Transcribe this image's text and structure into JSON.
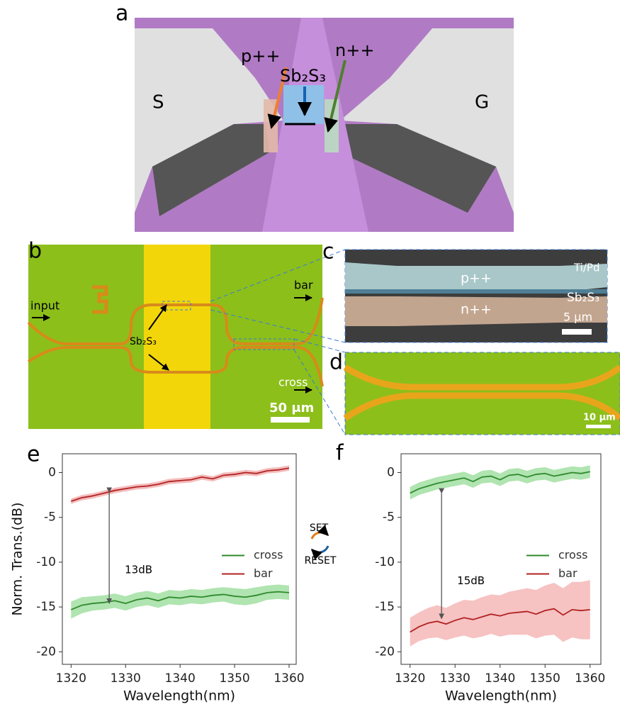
{
  "panels": {
    "a": {
      "label": "a",
      "left_electrode": "S",
      "right_electrode": "G",
      "p_label": "p++",
      "n_label": "n++",
      "material": "Sb₂S₃"
    },
    "b": {
      "label": "b",
      "input": "input",
      "bar": "bar",
      "cross": "cross",
      "material": "Sb₂S₃",
      "scale": "50 μm"
    },
    "c": {
      "label": "c",
      "p_label": "p++",
      "n_label": "n++",
      "metal": "Ti/Pd",
      "material": "Sb₂S₃",
      "scale": "5 μm"
    },
    "d": {
      "label": "d",
      "scale": "10 μm"
    },
    "e": {
      "label": "e"
    },
    "f": {
      "label": "f"
    }
  },
  "state_switch": {
    "set": "SET",
    "reset": "RESET"
  },
  "chart_data": [
    {
      "type": "line",
      "ylabel": "Norm. Trans.(dB)",
      "xlabel": "Wavelength(nm)",
      "x": [
        1320,
        1322,
        1324,
        1326,
        1328,
        1330,
        1332,
        1334,
        1336,
        1338,
        1340,
        1342,
        1344,
        1346,
        1348,
        1350,
        1352,
        1354,
        1356,
        1358,
        1360
      ],
      "xlim": [
        1318.4,
        1361.3
      ],
      "ylim": [
        -21.4,
        2.1
      ],
      "xticks": [
        1320,
        1330,
        1340,
        1350,
        1360
      ],
      "yticks": [
        -20,
        -15,
        -10,
        -5,
        0
      ],
      "legend": "center right",
      "series": [
        {
          "name": "cross",
          "color": "#2e8b2e",
          "band_color": "#8fd98f",
          "values": [
            -15.3,
            -14.8,
            -14.6,
            -14.5,
            -14.3,
            -14.6,
            -14.2,
            -14.0,
            -14.3,
            -13.9,
            -14.0,
            -13.8,
            -13.9,
            -13.7,
            -13.6,
            -13.8,
            -13.9,
            -13.7,
            -13.4,
            -13.3,
            -13.4
          ],
          "lower": [
            -16.3,
            -15.7,
            -15.4,
            -15.3,
            -15.1,
            -15.4,
            -15.0,
            -14.8,
            -15.1,
            -14.7,
            -14.8,
            -14.6,
            -14.7,
            -14.5,
            -14.4,
            -14.7,
            -14.8,
            -14.6,
            -14.2,
            -14.1,
            -14.2
          ],
          "upper": [
            -14.4,
            -13.9,
            -13.8,
            -13.7,
            -13.5,
            -13.8,
            -13.4,
            -13.2,
            -13.5,
            -13.1,
            -13.2,
            -13.0,
            -13.1,
            -12.9,
            -12.8,
            -12.9,
            -13.0,
            -12.8,
            -12.6,
            -12.5,
            -12.6
          ]
        },
        {
          "name": "bar",
          "color": "#b22222",
          "band_color": "#f0a0a0",
          "values": [
            -3.2,
            -2.8,
            -2.6,
            -2.3,
            -2.0,
            -1.8,
            -1.6,
            -1.5,
            -1.3,
            -1.0,
            -0.9,
            -0.8,
            -0.5,
            -0.7,
            -0.3,
            -0.2,
            0.0,
            -0.1,
            0.2,
            0.3,
            0.5
          ],
          "lower": [
            -3.5,
            -3.1,
            -2.9,
            -2.6,
            -2.3,
            -2.1,
            -1.9,
            -1.8,
            -1.6,
            -1.3,
            -1.2,
            -1.1,
            -0.8,
            -1.0,
            -0.6,
            -0.5,
            -0.3,
            -0.4,
            -0.1,
            0.0,
            0.2
          ],
          "upper": [
            -2.9,
            -2.5,
            -2.3,
            -2.0,
            -1.7,
            -1.5,
            -1.3,
            -1.2,
            -1.0,
            -0.7,
            -0.6,
            -0.5,
            -0.2,
            -0.4,
            0.0,
            0.1,
            0.3,
            0.2,
            0.5,
            0.6,
            0.8
          ]
        }
      ],
      "arrow": {
        "label": "13dB",
        "x": 1327,
        "from": -2.2,
        "to": -14.6
      }
    },
    {
      "type": "line",
      "xlabel": "Wavelength(nm)",
      "x": [
        1320,
        1322,
        1324,
        1326,
        1328,
        1330,
        1332,
        1334,
        1336,
        1338,
        1340,
        1342,
        1344,
        1346,
        1348,
        1350,
        1352,
        1354,
        1356,
        1358,
        1360
      ],
      "xlim": [
        1318,
        1362.4
      ],
      "ylim": [
        -21.4,
        2.1
      ],
      "xticks": [
        1320,
        1330,
        1340,
        1350,
        1360
      ],
      "yticks": [
        -20,
        -15,
        -10,
        -5,
        0
      ],
      "legend": "center right",
      "series": [
        {
          "name": "cross",
          "color": "#2e8b2e",
          "band_color": "#8fd98f",
          "values": [
            -2.3,
            -1.8,
            -1.5,
            -1.2,
            -1.0,
            -0.8,
            -0.6,
            -1.0,
            -0.5,
            -0.4,
            -0.8,
            -0.3,
            -0.2,
            -0.5,
            -0.2,
            -0.1,
            -0.4,
            -0.2,
            0.0,
            -0.1,
            0.1
          ],
          "lower": [
            -3.0,
            -2.5,
            -2.2,
            -1.9,
            -1.7,
            -1.5,
            -1.3,
            -1.7,
            -1.2,
            -1.1,
            -1.5,
            -1.0,
            -0.9,
            -1.2,
            -0.9,
            -0.8,
            -1.1,
            -0.9,
            -0.7,
            -0.8,
            -0.6
          ],
          "upper": [
            -1.6,
            -1.1,
            -0.8,
            -0.5,
            -0.3,
            -0.1,
            0.1,
            -0.3,
            0.2,
            0.3,
            -0.1,
            0.4,
            0.5,
            0.2,
            0.5,
            0.6,
            0.3,
            0.5,
            0.7,
            0.6,
            0.8
          ]
        },
        {
          "name": "bar",
          "color": "#b22222",
          "band_color": "#f2a8a8",
          "values": [
            -17.8,
            -17.2,
            -16.8,
            -16.6,
            -16.9,
            -16.5,
            -16.2,
            -16.4,
            -16.1,
            -15.8,
            -16.0,
            -15.7,
            -15.6,
            -15.5,
            -15.8,
            -15.4,
            -15.2,
            -15.9,
            -15.3,
            -15.4,
            -15.3
          ],
          "lower": [
            -19.4,
            -18.8,
            -18.5,
            -18.4,
            -18.7,
            -18.4,
            -18.2,
            -18.5,
            -18.3,
            -18.0,
            -18.3,
            -18.1,
            -18.1,
            -18.1,
            -18.5,
            -18.2,
            -18.1,
            -18.9,
            -18.4,
            -18.6,
            -18.6
          ],
          "upper": [
            -16.2,
            -15.6,
            -15.1,
            -14.8,
            -15.1,
            -14.6,
            -14.2,
            -14.3,
            -13.9,
            -13.6,
            -13.7,
            -13.3,
            -13.1,
            -12.9,
            -13.1,
            -12.6,
            -12.3,
            -12.9,
            -12.2,
            -12.2,
            -12.0
          ]
        }
      ],
      "arrow": {
        "label": "15dB",
        "x": 1327,
        "from": -2.3,
        "to": -16.3
      }
    }
  ]
}
